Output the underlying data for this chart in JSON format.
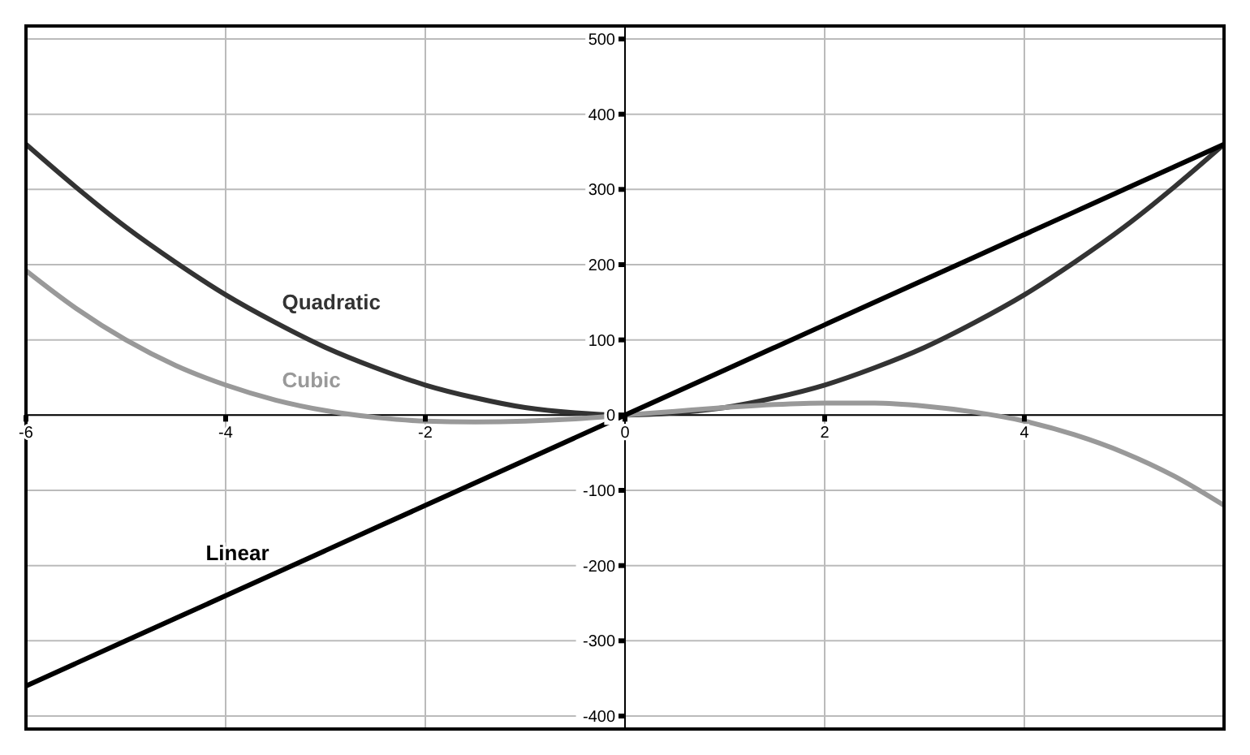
{
  "chart_data": {
    "type": "line",
    "x": [
      -6,
      -5.5,
      -5,
      -4.5,
      -4,
      -3.5,
      -3,
      -2.5,
      -2,
      -1.5,
      -1,
      -0.5,
      0,
      0.5,
      1,
      1.5,
      2,
      2.5,
      3,
      3.5,
      4,
      4.5,
      5,
      5.5,
      6
    ],
    "series": [
      {
        "name": "Quadratic",
        "color": "#333333",
        "values": [
          360,
          303,
          250,
          203,
          160,
          123,
          90,
          63,
          40,
          23,
          10,
          3,
          0,
          3,
          10,
          23,
          40,
          63,
          90,
          123,
          160,
          203,
          250,
          303,
          360
        ]
      },
      {
        "name": "Cubic",
        "color": "#999999",
        "values": [
          192,
          142,
          100,
          66,
          40,
          20,
          6,
          -3,
          -8,
          -9,
          -8,
          -5,
          0,
          5,
          10,
          14,
          16,
          16,
          12,
          4,
          -8,
          -26,
          -50,
          -81,
          -120
        ]
      },
      {
        "name": "Linear",
        "color": "#000000",
        "values": [
          -360,
          -330,
          -300,
          -270,
          -240,
          -210,
          -180,
          -150,
          -120,
          -90,
          -60,
          -30,
          0,
          30,
          60,
          90,
          120,
          150,
          180,
          210,
          240,
          270,
          300,
          330,
          360
        ]
      }
    ],
    "xlim": [
      -6,
      6
    ],
    "ylim": [
      -400,
      500
    ],
    "xticks": [
      -6,
      -4,
      -2,
      0,
      2,
      4
    ],
    "yticks": [
      -400,
      -300,
      -200,
      -100,
      0,
      100,
      200,
      300,
      400,
      500
    ],
    "grid": true,
    "marker": "none",
    "line_style": "solid"
  }
}
